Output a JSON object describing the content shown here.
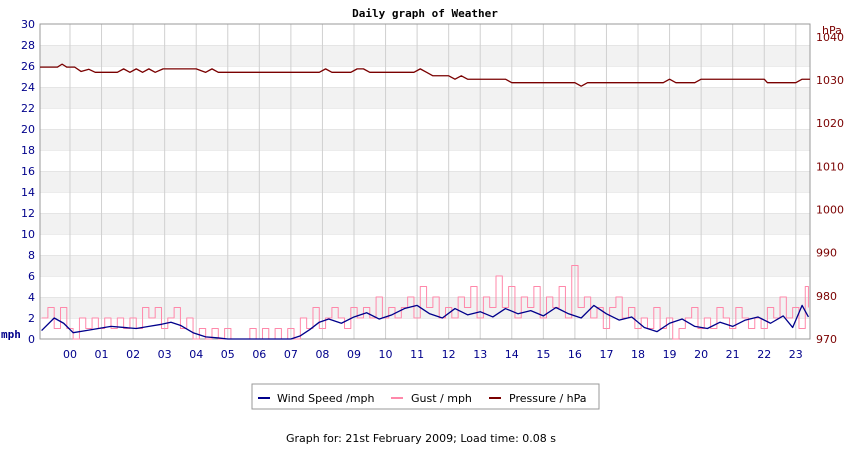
{
  "chart_data": {
    "type": "line",
    "title": "Daily graph of Weather",
    "left_axis": {
      "label": "mph",
      "range": [
        0,
        30
      ],
      "ticks": [
        "0",
        "2",
        "4",
        "6",
        "8",
        "10",
        "12",
        "14",
        "16",
        "18",
        "20",
        "22",
        "24",
        "26",
        "28",
        "30"
      ]
    },
    "right_axis": {
      "label": "hPa",
      "range": [
        970,
        1043
      ],
      "ticks": [
        "970",
        "980",
        "990",
        "1000",
        "1010",
        "1020",
        "1030",
        "1040"
      ]
    },
    "x_axis": {
      "ticks": [
        "00",
        "01",
        "02",
        "03",
        "04",
        "05",
        "06",
        "07",
        "08",
        "09",
        "10",
        "11",
        "12",
        "13",
        "14",
        "15",
        "16",
        "17",
        "18",
        "19",
        "20",
        "21",
        "22",
        "23"
      ],
      "range": [
        -0.95,
        23.45
      ]
    },
    "grid": true,
    "legend_position": "bottom",
    "series": [
      {
        "name": "Wind Speed /mph",
        "axis": "left",
        "color": "#00008b",
        "x": [
          -0.9,
          -0.5,
          -0.2,
          0.1,
          0.5,
          0.9,
          1.3,
          1.7,
          2.1,
          2.5,
          2.9,
          3.2,
          3.5,
          3.9,
          4.3,
          4.7,
          5.0,
          5.5,
          6.0,
          6.5,
          7.0,
          7.3,
          7.6,
          7.9,
          8.2,
          8.6,
          9.0,
          9.4,
          9.8,
          10.2,
          10.6,
          11.0,
          11.4,
          11.8,
          12.2,
          12.6,
          13.0,
          13.4,
          13.8,
          14.2,
          14.6,
          15.0,
          15.4,
          15.8,
          16.2,
          16.6,
          17.0,
          17.4,
          17.8,
          18.2,
          18.6,
          19.0,
          19.4,
          19.8,
          20.2,
          20.6,
          21.0,
          21.4,
          21.8,
          22.2,
          22.6,
          22.9,
          23.2,
          23.4
        ],
        "values": [
          0.8,
          2.0,
          1.5,
          0.6,
          0.8,
          1.0,
          1.2,
          1.1,
          1.0,
          1.2,
          1.4,
          1.6,
          1.3,
          0.6,
          0.2,
          0.1,
          0,
          0,
          0,
          0,
          0,
          0.3,
          0.9,
          1.6,
          1.9,
          1.5,
          2.1,
          2.5,
          1.9,
          2.3,
          2.9,
          3.2,
          2.4,
          2.0,
          2.9,
          2.3,
          2.6,
          2.1,
          2.9,
          2.4,
          2.7,
          2.2,
          3.0,
          2.4,
          2.0,
          3.2,
          2.4,
          1.8,
          2.1,
          1.1,
          0.7,
          1.5,
          1.9,
          1.2,
          1.0,
          1.6,
          1.2,
          1.8,
          2.1,
          1.5,
          2.2,
          1.1,
          3.2,
          2.1
        ]
      },
      {
        "name": "Gust / mph",
        "axis": "left",
        "color": "#ff88aa",
        "x": [
          -0.9,
          -0.7,
          -0.5,
          -0.3,
          -0.1,
          0.1,
          0.3,
          0.5,
          0.7,
          0.9,
          1.1,
          1.3,
          1.5,
          1.7,
          1.9,
          2.1,
          2.3,
          2.5,
          2.7,
          2.9,
          3.1,
          3.3,
          3.5,
          3.7,
          3.9,
          4.1,
          4.3,
          4.5,
          4.7,
          4.9,
          5.1,
          5.3,
          5.5,
          5.7,
          5.9,
          6.1,
          6.3,
          6.5,
          6.7,
          6.9,
          7.1,
          7.3,
          7.5,
          7.7,
          7.9,
          8.1,
          8.3,
          8.5,
          8.7,
          8.9,
          9.1,
          9.3,
          9.5,
          9.7,
          9.9,
          10.1,
          10.3,
          10.5,
          10.7,
          10.9,
          11.1,
          11.3,
          11.5,
          11.7,
          11.9,
          12.1,
          12.3,
          12.5,
          12.7,
          12.9,
          13.1,
          13.3,
          13.5,
          13.7,
          13.9,
          14.1,
          14.3,
          14.5,
          14.7,
          14.9,
          15.1,
          15.3,
          15.5,
          15.7,
          15.9,
          16.1,
          16.3,
          16.5,
          16.7,
          16.9,
          17.1,
          17.3,
          17.5,
          17.7,
          17.9,
          18.1,
          18.3,
          18.5,
          18.7,
          18.9,
          19.1,
          19.3,
          19.5,
          19.7,
          19.9,
          20.1,
          20.3,
          20.5,
          20.7,
          20.9,
          21.1,
          21.3,
          21.5,
          21.7,
          21.9,
          22.1,
          22.3,
          22.5,
          22.7,
          22.9,
          23.1,
          23.3,
          23.4
        ],
        "values": [
          2,
          3,
          1,
          3,
          1,
          0,
          2,
          1,
          2,
          1,
          2,
          1,
          2,
          1,
          2,
          1,
          3,
          2,
          3,
          1,
          2,
          3,
          1,
          2,
          0,
          1,
          0,
          1,
          0,
          1,
          0,
          0,
          0,
          1,
          0,
          1,
          0,
          1,
          0,
          1,
          0,
          2,
          1,
          3,
          1,
          2,
          3,
          2,
          1,
          3,
          2,
          3,
          2,
          4,
          2,
          3,
          2,
          3,
          4,
          2,
          5,
          3,
          4,
          2,
          3,
          2,
          4,
          3,
          5,
          2,
          4,
          3,
          6,
          3,
          5,
          2,
          4,
          3,
          5,
          2,
          4,
          3,
          5,
          2,
          7,
          3,
          4,
          2,
          3,
          1,
          3,
          4,
          2,
          3,
          1,
          2,
          1,
          3,
          1,
          2,
          0,
          1,
          2,
          3,
          1,
          2,
          1,
          3,
          2,
          1,
          3,
          2,
          1,
          2,
          1,
          3,
          2,
          4,
          2,
          3,
          1,
          5,
          3
        ]
      },
      {
        "name": "Pressure / hPa",
        "axis": "right",
        "color": "#7a0000",
        "x": [
          -0.95,
          -0.4,
          -0.25,
          -0.1,
          0.15,
          0.35,
          0.6,
          0.8,
          1.0,
          1.5,
          1.7,
          1.9,
          2.1,
          2.3,
          2.5,
          2.7,
          2.95,
          3.5,
          4.0,
          4.3,
          4.5,
          4.7,
          4.9,
          5.5,
          6.5,
          7.0,
          7.5,
          7.9,
          8.1,
          8.3,
          8.5,
          8.9,
          9.1,
          9.3,
          9.5,
          9.7,
          10.0,
          10.5,
          10.9,
          11.1,
          11.3,
          11.5,
          11.7,
          12.0,
          12.2,
          12.4,
          12.6,
          12.8,
          13.0,
          13.5,
          13.8,
          14.0,
          14.5,
          15.0,
          15.5,
          16.0,
          16.2,
          16.4,
          16.6,
          16.8,
          17.0,
          17.5,
          18.0,
          18.5,
          18.8,
          19.0,
          19.2,
          19.5,
          19.8,
          20.0,
          20.5,
          21.0,
          21.5,
          22.0,
          22.1,
          22.3,
          22.6,
          23.0,
          23.2,
          23.45
        ],
        "values": [
          1033,
          1033,
          1033.7,
          1033,
          1033,
          1032,
          1032.5,
          1031.8,
          1031.8,
          1031.8,
          1032.6,
          1031.8,
          1032.6,
          1031.8,
          1032.6,
          1031.8,
          1032.6,
          1032.6,
          1032.6,
          1031.8,
          1032.6,
          1031.8,
          1031.8,
          1031.8,
          1031.8,
          1031.8,
          1031.8,
          1031.8,
          1032.6,
          1031.8,
          1031.8,
          1031.8,
          1032.6,
          1032.6,
          1031.8,
          1031.8,
          1031.8,
          1031.8,
          1031.8,
          1032.6,
          1031.8,
          1031.0,
          1031.0,
          1031.0,
          1030.2,
          1031.0,
          1030.2,
          1030.2,
          1030.2,
          1030.2,
          1030.2,
          1029.4,
          1029.4,
          1029.4,
          1029.4,
          1029.4,
          1028.6,
          1029.4,
          1029.4,
          1029.4,
          1029.4,
          1029.4,
          1029.4,
          1029.4,
          1029.4,
          1030.2,
          1029.4,
          1029.4,
          1029.4,
          1030.2,
          1030.2,
          1030.2,
          1030.2,
          1030.2,
          1029.4,
          1029.4,
          1029.4,
          1029.4,
          1030.2,
          1030.2
        ]
      }
    ]
  },
  "footer": {
    "text": "Graph for: 21st February 2009; Load time: 0.08 s"
  }
}
